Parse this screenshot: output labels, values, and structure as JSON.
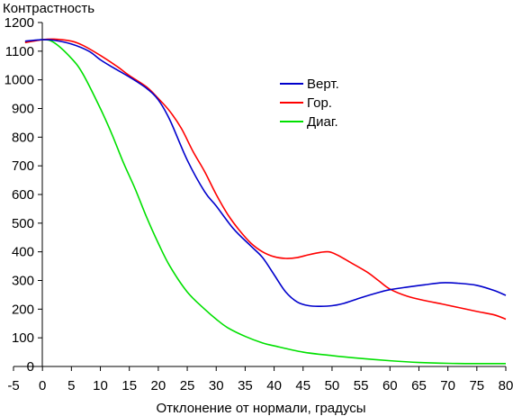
{
  "chart_data": {
    "type": "line",
    "title": "",
    "ylabel": "Контрастность",
    "xlabel": "Отклонение от нормали, градусы",
    "xlim": [
      -5,
      80
    ],
    "ylim": [
      0,
      1200
    ],
    "x_ticks": [
      "-5",
      "0",
      "5",
      "10",
      "15",
      "20",
      "25",
      "30",
      "35",
      "40",
      "45",
      "50",
      "55",
      "60",
      "65",
      "70",
      "75",
      "80"
    ],
    "y_ticks": [
      "0",
      "100",
      "200",
      "300",
      "400",
      "500",
      "600",
      "700",
      "800",
      "900",
      "1000",
      "1100",
      "1200"
    ],
    "grid": false,
    "legend_position": "top-right",
    "series": [
      {
        "name": "Верт.",
        "color": "#0000cc",
        "points": [
          [
            -3,
            1135
          ],
          [
            0,
            1140
          ],
          [
            2,
            1138
          ],
          [
            5,
            1125
          ],
          [
            8,
            1100
          ],
          [
            10,
            1070
          ],
          [
            12,
            1045
          ],
          [
            15,
            1010
          ],
          [
            18,
            970
          ],
          [
            20,
            930
          ],
          [
            22,
            860
          ],
          [
            25,
            720
          ],
          [
            28,
            610
          ],
          [
            30,
            560
          ],
          [
            33,
            480
          ],
          [
            36,
            420
          ],
          [
            38,
            380
          ],
          [
            40,
            320
          ],
          [
            42,
            260
          ],
          [
            44,
            225
          ],
          [
            46,
            212
          ],
          [
            48,
            210
          ],
          [
            50,
            212
          ],
          [
            52,
            220
          ],
          [
            55,
            240
          ],
          [
            58,
            258
          ],
          [
            60,
            268
          ],
          [
            63,
            277
          ],
          [
            66,
            285
          ],
          [
            69,
            292
          ],
          [
            72,
            290
          ],
          [
            75,
            283
          ],
          [
            78,
            265
          ],
          [
            80,
            248
          ]
        ]
      },
      {
        "name": "Гор.",
        "color": "#ff0000",
        "points": [
          [
            -3,
            1130
          ],
          [
            0,
            1140
          ],
          [
            2,
            1142
          ],
          [
            5,
            1135
          ],
          [
            7,
            1120
          ],
          [
            10,
            1085
          ],
          [
            13,
            1045
          ],
          [
            15,
            1015
          ],
          [
            18,
            975
          ],
          [
            20,
            935
          ],
          [
            22,
            890
          ],
          [
            24,
            830
          ],
          [
            26,
            750
          ],
          [
            28,
            680
          ],
          [
            30,
            600
          ],
          [
            32,
            530
          ],
          [
            34,
            475
          ],
          [
            36,
            430
          ],
          [
            38,
            400
          ],
          [
            40,
            383
          ],
          [
            42,
            377
          ],
          [
            44,
            380
          ],
          [
            46,
            390
          ],
          [
            48,
            398
          ],
          [
            49.5,
            400
          ],
          [
            51,
            388
          ],
          [
            53,
            365
          ],
          [
            56,
            330
          ],
          [
            58,
            300
          ],
          [
            60,
            270
          ],
          [
            63,
            245
          ],
          [
            66,
            230
          ],
          [
            69,
            218
          ],
          [
            72,
            205
          ],
          [
            75,
            192
          ],
          [
            78,
            180
          ],
          [
            80,
            165
          ]
        ]
      },
      {
        "name": "Диаг.",
        "color": "#00e000",
        "points": [
          [
            -3,
            1130
          ],
          [
            0,
            1140
          ],
          [
            2,
            1130
          ],
          [
            5,
            1075
          ],
          [
            7,
            1020
          ],
          [
            10,
            900
          ],
          [
            12,
            810
          ],
          [
            14,
            710
          ],
          [
            16,
            620
          ],
          [
            18,
            520
          ],
          [
            20,
            430
          ],
          [
            22,
            350
          ],
          [
            25,
            260
          ],
          [
            28,
            200
          ],
          [
            30,
            165
          ],
          [
            32,
            135
          ],
          [
            35,
            105
          ],
          [
            38,
            82
          ],
          [
            40,
            72
          ],
          [
            45,
            50
          ],
          [
            50,
            38
          ],
          [
            55,
            28
          ],
          [
            60,
            20
          ],
          [
            65,
            14
          ],
          [
            70,
            11
          ],
          [
            75,
            10
          ],
          [
            80,
            10
          ]
        ]
      }
    ]
  },
  "legend": [
    {
      "label": "Верт.",
      "color": "#0000cc"
    },
    {
      "label": "Гор.",
      "color": "#ff0000"
    },
    {
      "label": "Диаг.",
      "color": "#00e000"
    }
  ]
}
